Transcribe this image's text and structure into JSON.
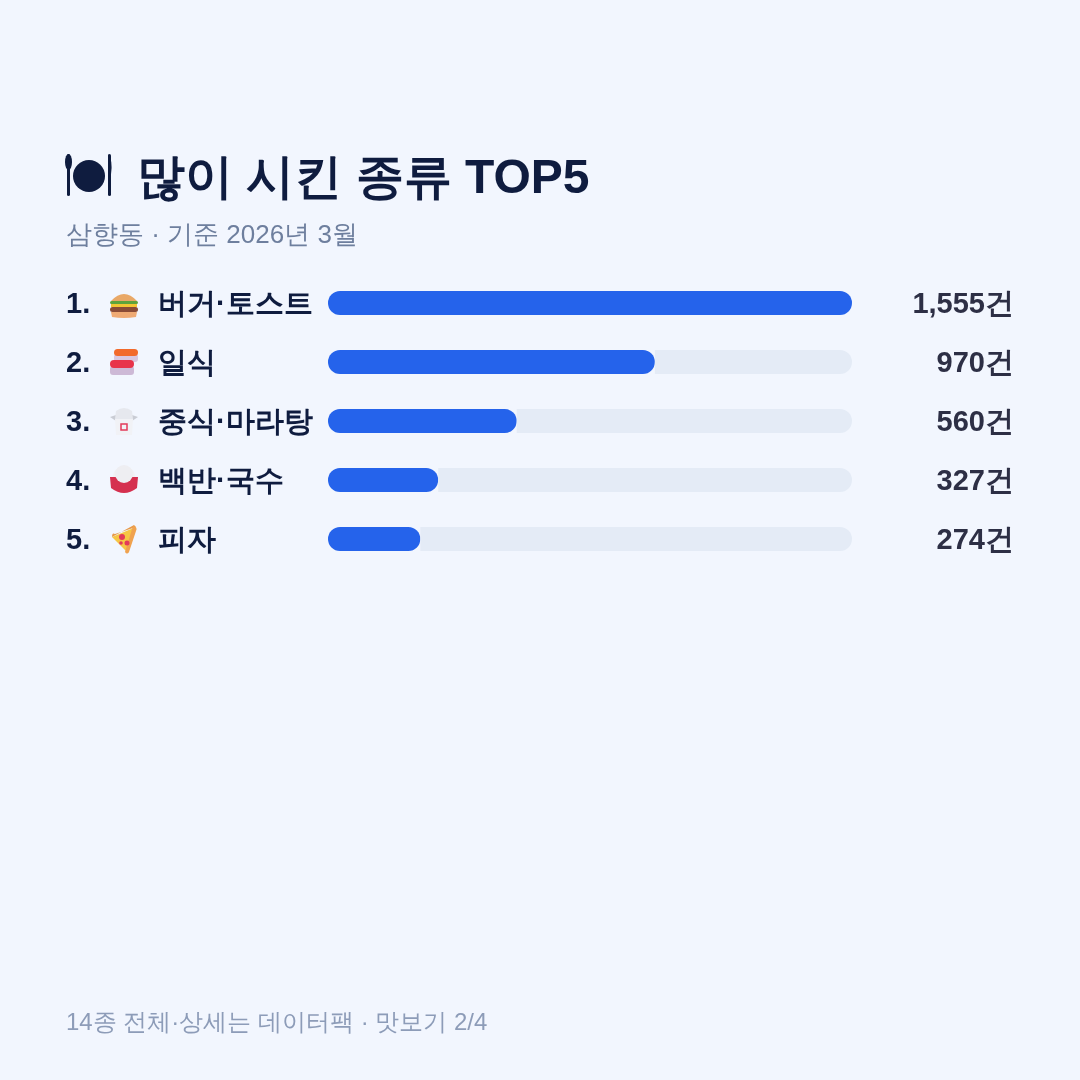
{
  "chart_data": {
    "type": "bar",
    "orientation": "horizontal",
    "stacked": true,
    "title": "많이 시킨 종류 TOP5",
    "subtitle": "삼향동 · 기준 2026년 3월",
    "categories": [
      "1. 버거·토스트",
      "2. 일식",
      "3. 중식·마라탕",
      "4. 백반·국수",
      "5. 피자"
    ],
    "series": [
      {
        "color": "#2563eb",
        "values": [
          1555,
          970,
          560,
          327,
          274
        ],
        "value_labels": [
          "1,555건",
          "970건",
          "560건",
          "327건",
          "274건"
        ]
      },
      {
        "color": "#e4ebf6",
        "values": [
          0,
          585,
          995,
          1228,
          1281
        ]
      }
    ],
    "annotations": [
      "14종 전체·상세는 데이터팩 · 맛보기 2/4"
    ]
  }
}
